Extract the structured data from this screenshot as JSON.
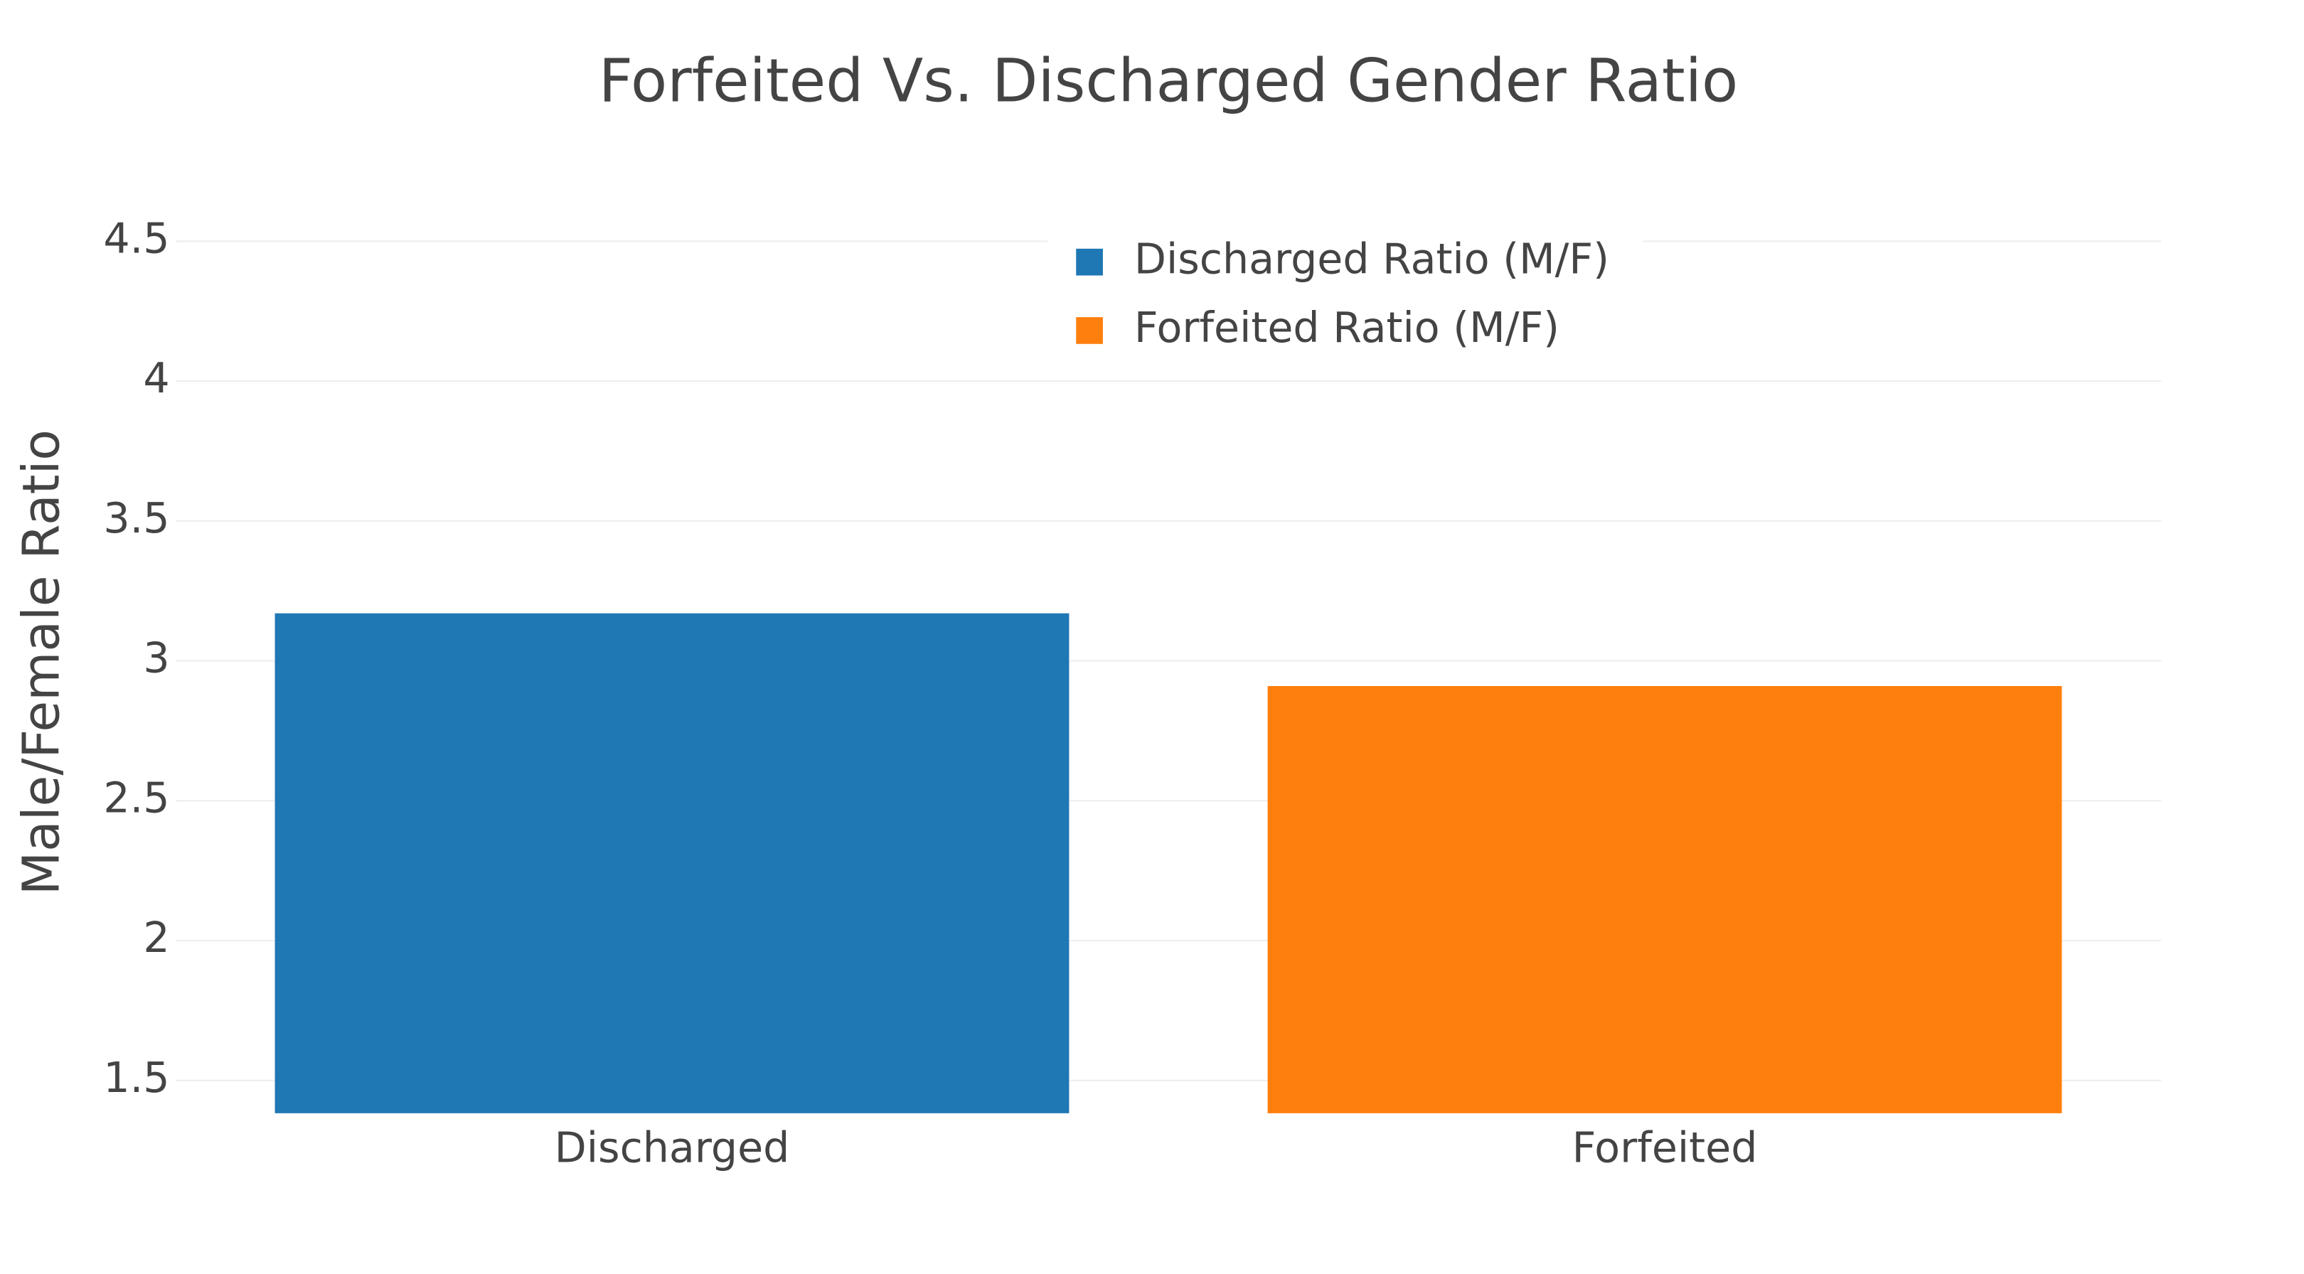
{
  "chart_data": {
    "type": "bar",
    "title": "Forfeited Vs. Discharged Gender Ratio",
    "y_label": "Male/Female Ratio",
    "categories": [
      "Discharged",
      "Forfeited"
    ],
    "series": [
      {
        "name": "Discharged Ratio (M/F)",
        "color": "#1f77b4",
        "values": [
          3.17,
          null
        ]
      },
      {
        "name": "Forfeited Ratio (M/F)",
        "color": "#ff7f0e",
        "values": [
          null,
          2.91
        ]
      }
    ],
    "ylim": [
      1.383,
      4.6
    ],
    "yticks": [
      1.5,
      2,
      2.5,
      3,
      3.5,
      4,
      4.5
    ],
    "grid": true,
    "legend": "top"
  }
}
